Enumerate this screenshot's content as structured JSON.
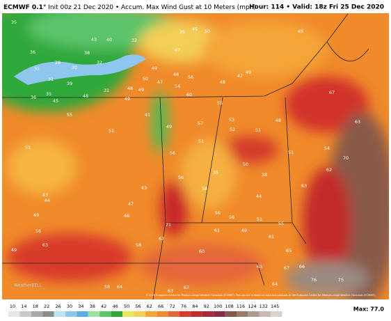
{
  "header": {
    "model": "ECMWF 0.1°",
    "init": "Init 00z 21 Dec 2020 • Accum. Max Wind Gust at 10 Meters (mph)",
    "valid": "Hour: 114 • Valid: 18z Fri 25 Dec 2020"
  },
  "map": {
    "labels": [
      "35",
      "43",
      "40",
      "32",
      "35",
      "45",
      "50",
      "45",
      "36",
      "38",
      "47",
      "28",
      "30",
      "32",
      "31",
      "31",
      "39",
      "49",
      "48",
      "56",
      "48",
      "47",
      "49",
      "50",
      "47",
      "54",
      "48",
      "49",
      "35",
      "36",
      "48",
      "31",
      "60",
      "55",
      "67",
      "45",
      "49",
      "41",
      "49",
      "57",
      "53",
      "52",
      "51",
      "48",
      "63",
      "55",
      "51",
      "51",
      "54",
      "51",
      "56",
      "51",
      "70",
      "50",
      "38",
      "62",
      "35",
      "56",
      "58",
      "63",
      "43",
      "44",
      "43",
      "44",
      "47",
      "56",
      "58",
      "51",
      "55",
      "49",
      "46",
      "71",
      "56",
      "49",
      "61",
      "67",
      "61",
      "58",
      "49",
      "63",
      "65",
      "60",
      "67",
      "66",
      "63",
      "76",
      "75",
      "58",
      "64",
      "63",
      "67",
      "64"
    ],
    "credit": "© 2020 European Centre for Medium-range Weather Forecasts (ECMWF). This service is based on data and products of the European Centre for Medium-range Weather Forecasts (ECMWF).",
    "logo": "WeatherBELL"
  },
  "colorbar": {
    "ticks": [
      10,
      14,
      18,
      22,
      26,
      30,
      34,
      38,
      42,
      46,
      50,
      56,
      62,
      66,
      72,
      76,
      84,
      92,
      100,
      108,
      116,
      124,
      132,
      145
    ],
    "max": "Max: 77.0"
  }
}
